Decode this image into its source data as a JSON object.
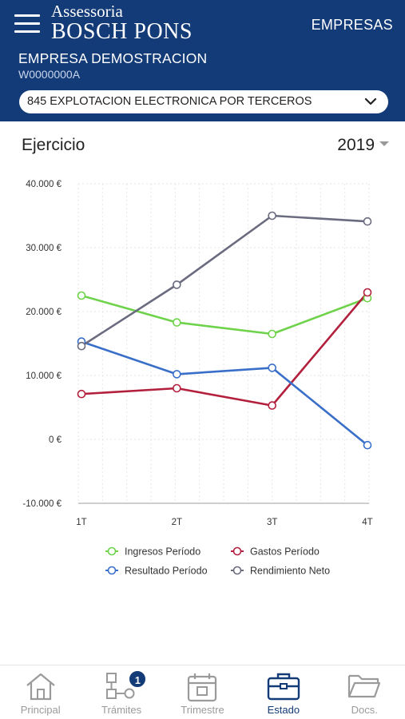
{
  "header": {
    "logo_top": "Assessoria",
    "logo_bottom": "BOSCH PONS",
    "companies_link": "EMPRESAS",
    "company_name": "EMPRESA DEMOSTRACION",
    "company_id": "W0000000A",
    "activity": "845 EXPLOTACION ELECTRONICA POR TERCEROS",
    "bg_color": "#133b78"
  },
  "section": {
    "title": "Ejercicio",
    "year": "2019"
  },
  "chart_data": {
    "type": "line",
    "x": [
      "1T",
      "2T",
      "3T",
      "4T"
    ],
    "yticks": [
      "40.000 €",
      "30.000 €",
      "20.000 €",
      "10.000 €",
      "0 €",
      "-10.000 €"
    ],
    "ylim": [
      -10000,
      40000
    ],
    "grid": true,
    "legend": "bottom",
    "series": [
      {
        "name": "Ingresos Período",
        "color": "#6ed24a",
        "values": [
          22500,
          18300,
          16500,
          22100
        ]
      },
      {
        "name": "Gastos Período",
        "color": "#b3203d",
        "values": [
          7100,
          8000,
          5300,
          23000
        ]
      },
      {
        "name": "Resultado Período",
        "color": "#3a6fc9",
        "values": [
          15300,
          10200,
          11200,
          -900
        ]
      },
      {
        "name": "Rendimiento Neto",
        "color": "#6b6b80",
        "values": [
          14600,
          24200,
          35000,
          34100
        ]
      }
    ]
  },
  "nav": {
    "items": [
      {
        "label": "Principal",
        "icon": "home-icon"
      },
      {
        "label": "Trámites",
        "icon": "workflow-icon",
        "badge": "1"
      },
      {
        "label": "Trimestre",
        "icon": "calendar-icon"
      },
      {
        "label": "Estado",
        "icon": "briefcase-icon",
        "active": true
      },
      {
        "label": "Docs.",
        "icon": "folder-icon"
      }
    ],
    "active_color": "#133b78",
    "inactive_color": "#9a9a9a"
  }
}
